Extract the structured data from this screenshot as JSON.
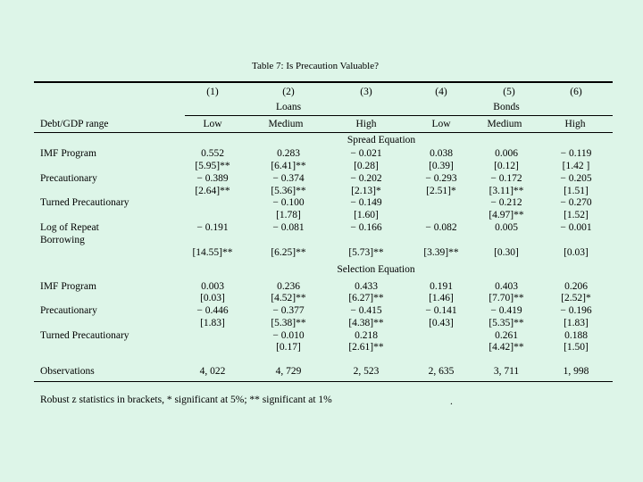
{
  "title": "Table 7: Is Precaution Valuable?",
  "columns": [
    "(1)",
    "(2)",
    "(3)",
    "(4)",
    "(5)",
    "(6)"
  ],
  "groups": {
    "loans": "Loans",
    "bonds": "Bonds"
  },
  "range_label": "Debt/GDP range",
  "ranges": [
    "Low",
    "Medium",
    "High",
    "Low",
    "Medium",
    "High"
  ],
  "section1": "Spread Equation",
  "section2": "Selection Equation",
  "row_labels": {
    "imf1": "IMF Program",
    "prec1": "Precautionary",
    "turned1": "Turned Precautionary",
    "repeat_1": "Log of Repeat",
    "repeat_2": "Borrowing",
    "imf2": "IMF Program",
    "prec2": "Precautionary",
    "turned2": "Turned Precautionary",
    "obs": "Observations"
  },
  "spread": {
    "imf": [
      "0.552",
      "0.283",
      "− 0.021",
      "0.038",
      "0.006",
      "− 0.119"
    ],
    "imf_z": [
      "[5.95]**",
      "[6.41]**",
      "[0.28]",
      "[0.39]",
      "[0.12]",
      "[1.42  ]"
    ],
    "prec": [
      "− 0.389",
      "− 0.374",
      "− 0.202",
      "− 0.293",
      "− 0.172",
      "− 0.205"
    ],
    "prec_z": [
      "[2.64]**",
      "[5.36]**",
      "[2.13]*",
      "[2.51]*",
      "[3.11]**",
      "[1.51]"
    ],
    "turned": [
      "",
      "− 0.100",
      "− 0.149",
      "",
      "− 0.212",
      "− 0.270"
    ],
    "turned_z": [
      "",
      "[1.78]",
      "[1.60]",
      "",
      "[4.97]**",
      "[1.52]"
    ],
    "repeat": [
      "− 0.191",
      "− 0.081",
      "− 0.166",
      "− 0.082",
      "0.005",
      "− 0.001"
    ],
    "repeat_z": [
      "[14.55]**",
      "[6.25]**",
      "[5.73]**",
      "[3.39]**",
      "[0.30]",
      "[0.03]"
    ]
  },
  "selection": {
    "imf": [
      "0.003",
      "0.236",
      "0.433",
      "0.191",
      "0.403",
      "0.206"
    ],
    "imf_z": [
      "[0.03]",
      "[4.52]**",
      "[6.27]**",
      "[1.46]",
      "[7.70]**",
      "[2.52]*"
    ],
    "prec": [
      "− 0.446",
      "− 0.377",
      "− 0.415",
      "− 0.141",
      "− 0.419",
      "− 0.196"
    ],
    "prec_z": [
      "[1.83]",
      "[5.38]**",
      "[4.38]**",
      "[0.43]",
      "[5.35]**",
      "[1.83]"
    ],
    "turned": [
      "",
      "− 0.010",
      "0.218",
      "",
      "0.261",
      "0.188"
    ],
    "turned_z": [
      "",
      "[0.17]",
      "[2.61]**",
      "",
      "[4.42]**",
      "[1.50]"
    ]
  },
  "observations": [
    "4, 022",
    "4, 729",
    "2, 523",
    "2, 635",
    "3, 711",
    "1, 998"
  ],
  "note": "Robust z statistics in brackets, * significant at 5%; ** significant at 1%",
  "stray_dot": "."
}
